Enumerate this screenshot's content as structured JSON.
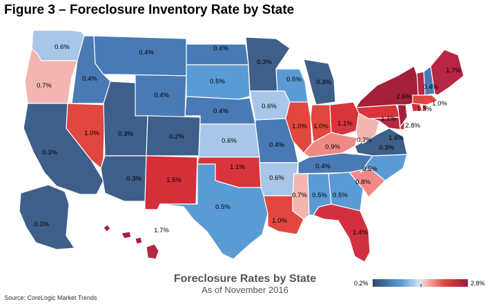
{
  "figure_title": "Figure 3 – Foreclosure Inventory Rate by State",
  "map_title": "Foreclosure Rates by State",
  "map_subtitle": "As of November 2016",
  "source": "Source: CoreLogic Market Trends",
  "legend": {
    "min_label": "0.2%",
    "max_label": "2.8%",
    "min": 0.2,
    "max": 2.8
  },
  "colors": {
    "low": "#3e5f8a",
    "mid_low": "#5b9bd5",
    "mid": "#c9daf0",
    "mid_high": "#f4a6a0",
    "high": "#a3203a"
  },
  "states": [
    {
      "abbr": "WA",
      "label": "0.6%",
      "rate": 0.6
    },
    {
      "abbr": "OR",
      "label": "0.7%",
      "rate": 0.7
    },
    {
      "abbr": "CA",
      "label": "0.3%",
      "rate": 0.3
    },
    {
      "abbr": "NV",
      "label": "1.0%",
      "rate": 1.0
    },
    {
      "abbr": "ID",
      "label": "0.4%",
      "rate": 0.4
    },
    {
      "abbr": "MT",
      "label": "0.4%",
      "rate": 0.4
    },
    {
      "abbr": "WY",
      "label": "0.4%",
      "rate": 0.4
    },
    {
      "abbr": "UT",
      "label": "0.3%",
      "rate": 0.3
    },
    {
      "abbr": "AZ",
      "label": "0.3%",
      "rate": 0.3
    },
    {
      "abbr": "CO",
      "label": "0.2%",
      "rate": 0.2
    },
    {
      "abbr": "NM",
      "label": "1.5%",
      "rate": 1.5
    },
    {
      "abbr": "ND",
      "label": "0.4%",
      "rate": 0.4
    },
    {
      "abbr": "SD",
      "label": "0.5%",
      "rate": 0.5
    },
    {
      "abbr": "NE",
      "label": "0.4%",
      "rate": 0.4
    },
    {
      "abbr": "KS",
      "label": "0.6%",
      "rate": 0.6
    },
    {
      "abbr": "OK",
      "label": "1.1%",
      "rate": 1.1
    },
    {
      "abbr": "TX",
      "label": "0.5%",
      "rate": 0.5
    },
    {
      "abbr": "MN",
      "label": "0.3%",
      "rate": 0.3
    },
    {
      "abbr": "IA",
      "label": "0.6%",
      "rate": 0.6
    },
    {
      "abbr": "MO",
      "label": "0.4%",
      "rate": 0.4
    },
    {
      "abbr": "AR",
      "label": "0.6%",
      "rate": 0.6
    },
    {
      "abbr": "LA",
      "label": "1.0%",
      "rate": 1.0
    },
    {
      "abbr": "WI",
      "label": "0.5%",
      "rate": 0.5
    },
    {
      "abbr": "IL",
      "label": "1.0%",
      "rate": 1.0
    },
    {
      "abbr": "MI",
      "label": "0.3%",
      "rate": 0.3
    },
    {
      "abbr": "IN",
      "label": "1.0%",
      "rate": 1.0
    },
    {
      "abbr": "OH",
      "label": "1.1%",
      "rate": 1.1
    },
    {
      "abbr": "KY",
      "label": "0.9%",
      "rate": 0.9
    },
    {
      "abbr": "TN",
      "label": "0.4%",
      "rate": 0.4
    },
    {
      "abbr": "MS",
      "label": "0.7%",
      "rate": 0.7
    },
    {
      "abbr": "AL",
      "label": "0.5%",
      "rate": 0.5
    },
    {
      "abbr": "GA",
      "label": "0.5%",
      "rate": 0.5
    },
    {
      "abbr": "FL",
      "label": "1.4%",
      "rate": 1.4
    },
    {
      "abbr": "SC",
      "label": "0.8%",
      "rate": 0.8
    },
    {
      "abbr": "NC",
      "label": "0.5%",
      "rate": 0.5
    },
    {
      "abbr": "VA",
      "label": "0.3%",
      "rate": 0.3
    },
    {
      "abbr": "WV",
      "label": "0.7%",
      "rate": 0.7
    },
    {
      "abbr": "MD",
      "label": "1.6%",
      "rate": 1.6
    },
    {
      "abbr": "DE",
      "label": "",
      "rate": 1.5
    },
    {
      "abbr": "PA",
      "label": "1.1%",
      "rate": 1.1
    },
    {
      "abbr": "NJ",
      "label": "2.8%",
      "rate": 2.8
    },
    {
      "abbr": "NY",
      "label": "2.6%",
      "rate": 2.6
    },
    {
      "abbr": "CT",
      "label": "1.3%",
      "rate": 1.3
    },
    {
      "abbr": "RI",
      "label": "",
      "rate": 1.5
    },
    {
      "abbr": "MA",
      "label": "1.0%",
      "rate": 1.0
    },
    {
      "abbr": "VT",
      "label": "",
      "rate": 1.6
    },
    {
      "abbr": "NH",
      "label": "0.4%",
      "rate": 0.4
    },
    {
      "abbr": "ME",
      "label": "1.7%",
      "rate": 1.7
    },
    {
      "abbr": "AK",
      "label": "0.3%",
      "rate": 0.3
    },
    {
      "abbr": "HI",
      "label": "1.7%",
      "rate": 1.7
    }
  ]
}
